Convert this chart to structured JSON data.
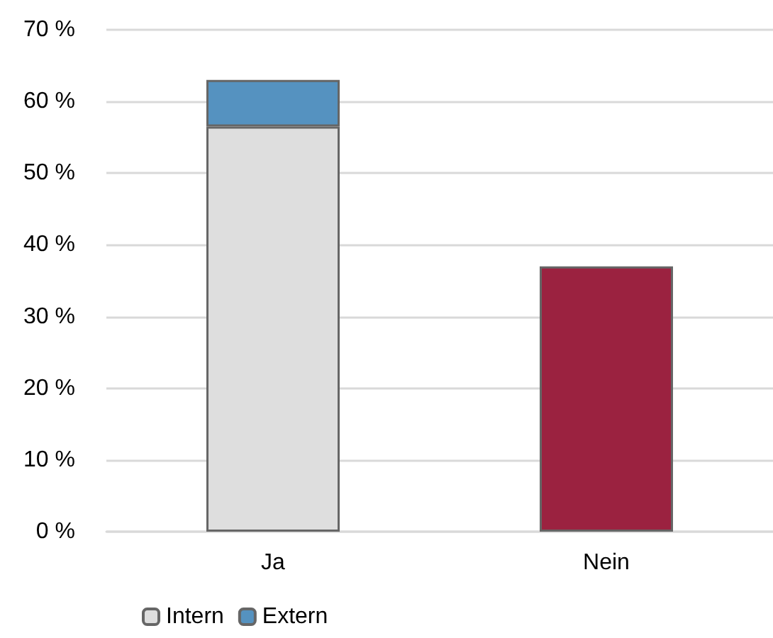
{
  "chart_data": {
    "type": "bar",
    "stacked": true,
    "categories": [
      "Ja",
      "Nein"
    ],
    "series": [
      {
        "name": "Intern",
        "color": "#dedede",
        "values": [
          56.5,
          null
        ]
      },
      {
        "name": "Extern",
        "color": "#5592c0",
        "values": [
          6.5,
          null
        ]
      },
      {
        "color": "#9b2240",
        "values": [
          null,
          37
        ]
      }
    ],
    "ylim": [
      0,
      70
    ],
    "yticks": [
      {
        "value": 0,
        "label": "0 %"
      },
      {
        "value": 10,
        "label": "10 %"
      },
      {
        "value": 20,
        "label": "20 %"
      },
      {
        "value": 30,
        "label": "30 %"
      },
      {
        "value": 40,
        "label": "40 %"
      },
      {
        "value": 50,
        "label": "50 %"
      },
      {
        "value": 60,
        "label": "60 %"
      },
      {
        "value": 70,
        "label": "70 %"
      }
    ],
    "grid": "y",
    "legend": "bottom left"
  }
}
